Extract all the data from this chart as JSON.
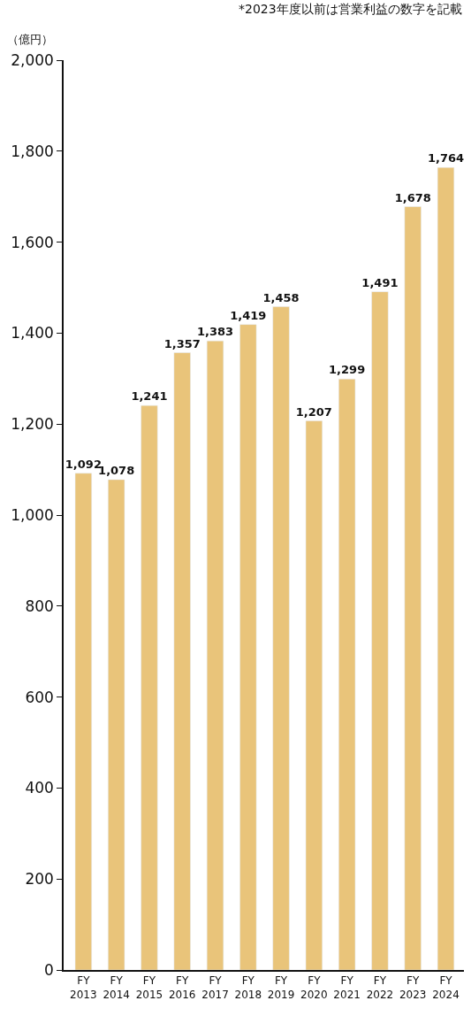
{
  "chart_data": {
    "type": "bar",
    "ylabel": "（億円）",
    "annotations": [
      "*2023年度以前は営業利益の数字を記載"
    ],
    "categories": [
      "FY 2013",
      "FY 2014",
      "FY 2015",
      "FY 2016",
      "FY 2017",
      "FY 2018",
      "FY 2019",
      "FY 2020",
      "FY 2021",
      "FY 2022",
      "FY 2023",
      "FY 2024"
    ],
    "values": [
      1092,
      1078,
      1241,
      1357,
      1383,
      1419,
      1458,
      1207,
      1299,
      1491,
      1678,
      1764
    ],
    "color": "#e9c47a",
    "ylim": [
      0,
      2000
    ],
    "yticks": [
      {
        "value": 0,
        "label": "0"
      },
      {
        "value": 200,
        "label": "200"
      },
      {
        "value": 400,
        "label": "400"
      },
      {
        "value": 600,
        "label": "600"
      },
      {
        "value": 800,
        "label": "800"
      },
      {
        "value": 1000,
        "label": "1,000"
      },
      {
        "value": 1200,
        "label": "1,200"
      },
      {
        "value": 1400,
        "label": "1,400"
      },
      {
        "value": 1600,
        "label": "1,600"
      },
      {
        "value": 1800,
        "label": "1,800"
      },
      {
        "value": 2000,
        "label": "2,000"
      }
    ],
    "value_labels": [
      "1,092",
      "1,078",
      "1,241",
      "1,357",
      "1,383",
      "1,419",
      "1,458",
      "1,207",
      "1,299",
      "1,491",
      "1,678",
      "1,764"
    ],
    "legend": false
  }
}
